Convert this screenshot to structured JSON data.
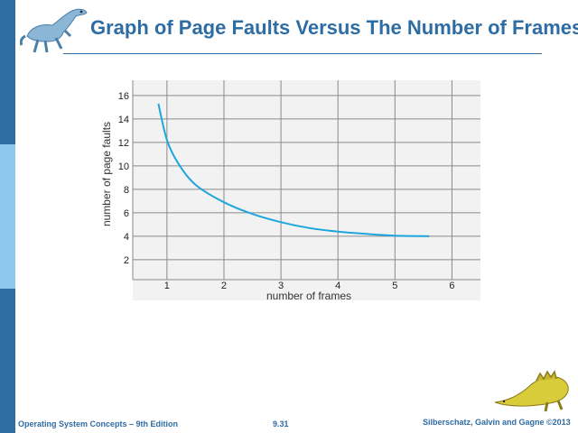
{
  "slide": {
    "title": "Graph of Page Faults Versus The Number of Frames",
    "footer_left": "Operating System Concepts – 9th Edition",
    "footer_center": "9.31",
    "footer_right": "Silberschatz, Galvin and Gagne ©2013"
  },
  "colors": {
    "accent": "#2e6ca4",
    "sidebar_light": "#8ec8f0",
    "curve": "#1ea6dc",
    "plot_bg": "#f2f2f2",
    "grid": "#8a8a8a"
  },
  "chart_data": {
    "type": "line",
    "title": "",
    "xlabel": "number of frames",
    "ylabel": "number of page faults",
    "xlim": [
      0.4,
      6.5
    ],
    "ylim": [
      0.3,
      17.3
    ],
    "x_ticks": [
      1,
      2,
      3,
      4,
      5,
      6
    ],
    "y_ticks": [
      2,
      4,
      6,
      8,
      10,
      12,
      14,
      16
    ],
    "grid": true,
    "series": [
      {
        "values": [
          {
            "x": 0.85,
            "y": 15.3
          },
          {
            "x": 1.0,
            "y": 12.2
          },
          {
            "x": 1.2,
            "y": 10.2
          },
          {
            "x": 1.5,
            "y": 8.4
          },
          {
            "x": 2.0,
            "y": 6.9
          },
          {
            "x": 2.5,
            "y": 5.9
          },
          {
            "x": 3.0,
            "y": 5.2
          },
          {
            "x": 3.5,
            "y": 4.7
          },
          {
            "x": 4.0,
            "y": 4.4
          },
          {
            "x": 4.5,
            "y": 4.2
          },
          {
            "x": 5.0,
            "y": 4.05
          },
          {
            "x": 5.6,
            "y": 4.0
          }
        ]
      }
    ]
  }
}
